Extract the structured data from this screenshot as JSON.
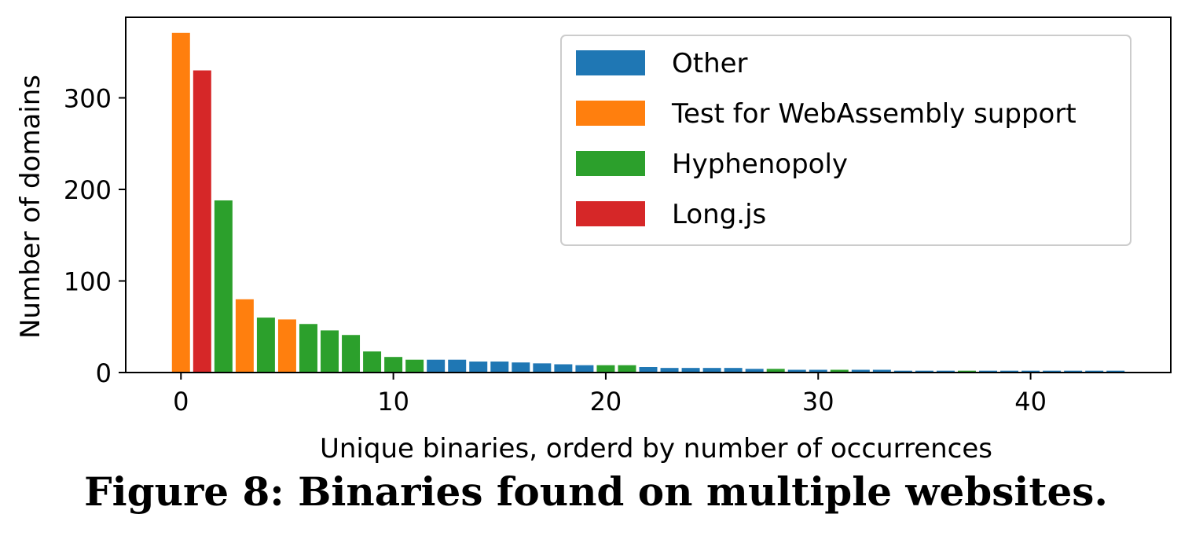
{
  "caption": "Figure 8: Binaries found on multiple websites.",
  "chart_data": {
    "type": "bar",
    "xlabel": "Unique binaries, orderd by number of occurrences",
    "ylabel": "Number of domains",
    "xlim": [
      -2.6,
      46.6
    ],
    "ylim": [
      0,
      388
    ],
    "xticks": [
      0,
      10,
      20,
      30,
      40
    ],
    "yticks": [
      0,
      100,
      200,
      300
    ],
    "legend_position": "top-right",
    "colors": {
      "Other": "#1f77b4",
      "Test for WebAssembly support": "#ff7f0e",
      "Hyphenopoly": "#2ca02c",
      "Long.js": "#d62728"
    },
    "legend": [
      "Other",
      "Test for WebAssembly support",
      "Hyphenopoly",
      "Long.js"
    ],
    "bars": [
      {
        "x": 0,
        "value": 371,
        "category": "Test for WebAssembly support"
      },
      {
        "x": 1,
        "value": 330,
        "category": "Long.js"
      },
      {
        "x": 2,
        "value": 188,
        "category": "Hyphenopoly"
      },
      {
        "x": 3,
        "value": 80,
        "category": "Test for WebAssembly support"
      },
      {
        "x": 4,
        "value": 60,
        "category": "Hyphenopoly"
      },
      {
        "x": 5,
        "value": 58,
        "category": "Test for WebAssembly support"
      },
      {
        "x": 6,
        "value": 53,
        "category": "Hyphenopoly"
      },
      {
        "x": 7,
        "value": 46,
        "category": "Hyphenopoly"
      },
      {
        "x": 8,
        "value": 41,
        "category": "Hyphenopoly"
      },
      {
        "x": 9,
        "value": 23,
        "category": "Hyphenopoly"
      },
      {
        "x": 10,
        "value": 17,
        "category": "Hyphenopoly"
      },
      {
        "x": 11,
        "value": 14,
        "category": "Hyphenopoly"
      },
      {
        "x": 12,
        "value": 14,
        "category": "Other"
      },
      {
        "x": 13,
        "value": 14,
        "category": "Other"
      },
      {
        "x": 14,
        "value": 12,
        "category": "Other"
      },
      {
        "x": 15,
        "value": 12,
        "category": "Other"
      },
      {
        "x": 16,
        "value": 11,
        "category": "Other"
      },
      {
        "x": 17,
        "value": 10,
        "category": "Other"
      },
      {
        "x": 18,
        "value": 9,
        "category": "Other"
      },
      {
        "x": 19,
        "value": 8,
        "category": "Other"
      },
      {
        "x": 20,
        "value": 8,
        "category": "Hyphenopoly"
      },
      {
        "x": 21,
        "value": 8,
        "category": "Hyphenopoly"
      },
      {
        "x": 22,
        "value": 6,
        "category": "Other"
      },
      {
        "x": 23,
        "value": 5,
        "category": "Other"
      },
      {
        "x": 24,
        "value": 5,
        "category": "Other"
      },
      {
        "x": 25,
        "value": 5,
        "category": "Other"
      },
      {
        "x": 26,
        "value": 5,
        "category": "Other"
      },
      {
        "x": 27,
        "value": 4,
        "category": "Other"
      },
      {
        "x": 28,
        "value": 4,
        "category": "Hyphenopoly"
      },
      {
        "x": 29,
        "value": 3,
        "category": "Other"
      },
      {
        "x": 30,
        "value": 3,
        "category": "Other"
      },
      {
        "x": 31,
        "value": 3,
        "category": "Hyphenopoly"
      },
      {
        "x": 32,
        "value": 3,
        "category": "Other"
      },
      {
        "x": 33,
        "value": 3,
        "category": "Other"
      },
      {
        "x": 34,
        "value": 2,
        "category": "Other"
      },
      {
        "x": 35,
        "value": 2,
        "category": "Other"
      },
      {
        "x": 36,
        "value": 2,
        "category": "Other"
      },
      {
        "x": 37,
        "value": 2,
        "category": "Hyphenopoly"
      },
      {
        "x": 38,
        "value": 2,
        "category": "Other"
      },
      {
        "x": 39,
        "value": 2,
        "category": "Other"
      },
      {
        "x": 40,
        "value": 2,
        "category": "Other"
      },
      {
        "x": 41,
        "value": 2,
        "category": "Other"
      },
      {
        "x": 42,
        "value": 2,
        "category": "Other"
      },
      {
        "x": 43,
        "value": 2,
        "category": "Other"
      },
      {
        "x": 44,
        "value": 2,
        "category": "Other"
      }
    ]
  }
}
